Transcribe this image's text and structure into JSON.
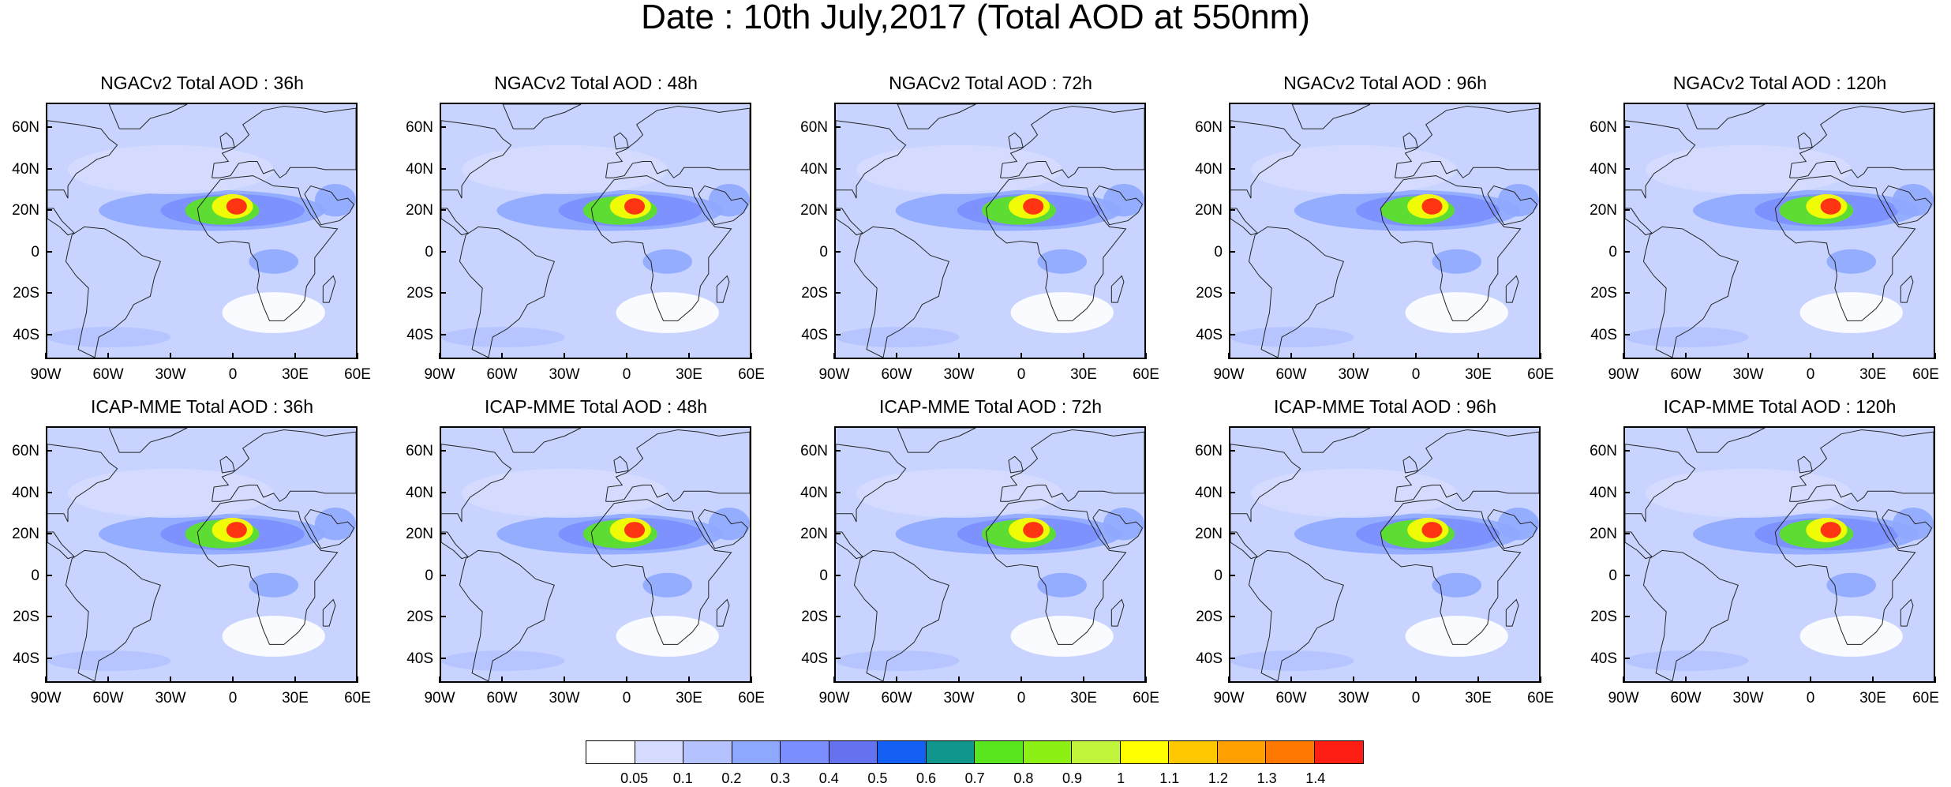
{
  "title": "Date : 10th July,2017 (Total AOD at 550nm)",
  "panels": [
    {
      "row": 0,
      "col": 0,
      "title": "NGACv2 Total AOD : 36h"
    },
    {
      "row": 0,
      "col": 1,
      "title": "NGACv2 Total AOD : 48h"
    },
    {
      "row": 0,
      "col": 2,
      "title": "NGACv2 Total AOD : 72h"
    },
    {
      "row": 0,
      "col": 3,
      "title": "NGACv2 Total AOD : 96h"
    },
    {
      "row": 0,
      "col": 4,
      "title": "NGACv2 Total AOD : 120h"
    },
    {
      "row": 1,
      "col": 0,
      "title": "ICAP-MME Total AOD : 36h"
    },
    {
      "row": 1,
      "col": 1,
      "title": "ICAP-MME Total AOD : 48h"
    },
    {
      "row": 1,
      "col": 2,
      "title": "ICAP-MME Total AOD : 72h"
    },
    {
      "row": 1,
      "col": 3,
      "title": "ICAP-MME Total AOD : 96h"
    },
    {
      "row": 1,
      "col": 4,
      "title": "ICAP-MME Total AOD : 120h"
    }
  ],
  "lat_labels": [
    "60N",
    "40N",
    "20N",
    "0",
    "20S",
    "40S"
  ],
  "lat_values": [
    60,
    40,
    20,
    0,
    -20,
    -40
  ],
  "lon_labels": [
    "90W",
    "60W",
    "30W",
    "0",
    "30E",
    "60E"
  ],
  "lon_values": [
    -90,
    -60,
    -30,
    0,
    30,
    60
  ],
  "extent": {
    "lon_min": -90,
    "lon_max": 60,
    "lat_min": -52,
    "lat_max": 72
  },
  "colorbar": {
    "labels": [
      "0.05",
      "0.1",
      "0.2",
      "0.3",
      "0.4",
      "0.5",
      "0.6",
      "0.7",
      "0.8",
      "0.9",
      "1",
      "1.1",
      "1.2",
      "1.3",
      "1.4"
    ],
    "colors": [
      "#ffffff",
      "#d5dcff",
      "#b4c3ff",
      "#8fa8ff",
      "#7a8eff",
      "#6472f0",
      "#1460f5",
      "#10968c",
      "#5ae61e",
      "#8cf014",
      "#c0f53c",
      "#ffff00",
      "#ffc800",
      "#ffa000",
      "#ff7800",
      "#ff1e14"
    ]
  }
}
